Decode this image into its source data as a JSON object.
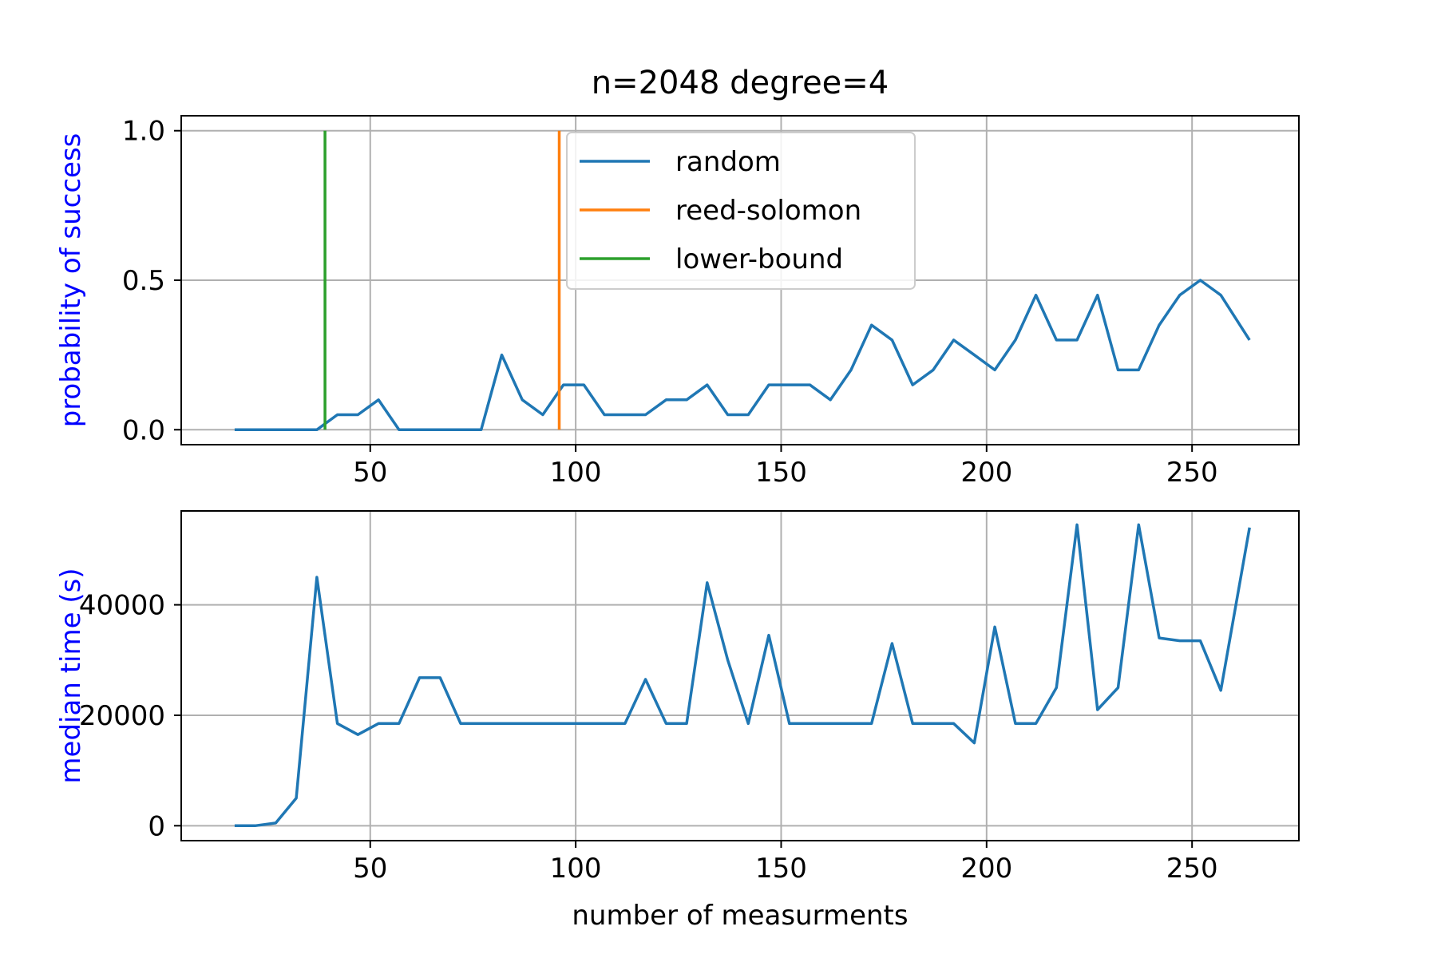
{
  "chart_data": [
    {
      "type": "line",
      "title": "n=2048 degree=4",
      "xlabel": "",
      "ylabel": "probability of success",
      "ylabel_color": "#0000ff",
      "xlim": [
        4,
        276
      ],
      "ylim": [
        -0.05,
        1.05
      ],
      "xticks": [
        50,
        100,
        150,
        200,
        250
      ],
      "yticks": [
        0.0,
        0.5,
        1.0
      ],
      "xtick_labels": [
        "50",
        "100",
        "150",
        "200",
        "250"
      ],
      "ytick_labels": [
        "0.0",
        "0.5",
        "1.0"
      ],
      "grid": true,
      "legend_position": "upper-center",
      "series": [
        {
          "name": "random",
          "color": "#1f77b4",
          "x": [
            17,
            22,
            27,
            32,
            37,
            42,
            47,
            52,
            57,
            62,
            67,
            72,
            77,
            82,
            87,
            92,
            97,
            102,
            107,
            112,
            117,
            122,
            127,
            132,
            137,
            142,
            147,
            152,
            157,
            162,
            167,
            172,
            177,
            182,
            187,
            192,
            197,
            202,
            207,
            212,
            217,
            222,
            227,
            232,
            237,
            242,
            247,
            252,
            257,
            264
          ],
          "y": [
            0,
            0,
            0,
            0,
            0,
            0.05,
            0.05,
            0.1,
            0,
            0,
            0,
            0,
            0,
            0.25,
            0.1,
            0.05,
            0.15,
            0.15,
            0.05,
            0.05,
            0.05,
            0.1,
            0.1,
            0.15,
            0.05,
            0.05,
            0.15,
            0.15,
            0.15,
            0.1,
            0.2,
            0.35,
            0.3,
            0.15,
            0.2,
            0.3,
            0.25,
            0.2,
            0.3,
            0.45,
            0.3,
            0.3,
            0.45,
            0.2,
            0.2,
            0.35,
            0.45,
            0.5,
            0.45,
            0.3
          ]
        },
        {
          "name": "reed-solomon",
          "color": "#ff7f0e",
          "x": [
            96,
            96
          ],
          "y": [
            0,
            1
          ]
        },
        {
          "name": "lower-bound",
          "color": "#2ca02c",
          "x": [
            39,
            39
          ],
          "y": [
            0,
            1
          ]
        }
      ]
    },
    {
      "type": "line",
      "title": "",
      "xlabel": "number of measurments",
      "ylabel": "median time (s)",
      "ylabel_color": "#0000ff",
      "xlim": [
        4,
        276
      ],
      "ylim": [
        -2700,
        57000
      ],
      "xticks": [
        50,
        100,
        150,
        200,
        250
      ],
      "yticks": [
        0,
        20000,
        40000
      ],
      "xtick_labels": [
        "50",
        "100",
        "150",
        "200",
        "250"
      ],
      "ytick_labels": [
        "0",
        "20000",
        "40000"
      ],
      "grid": true,
      "series": [
        {
          "name": "",
          "color": "#1f77b4",
          "x": [
            17,
            22,
            27,
            32,
            37,
            42,
            47,
            52,
            57,
            62,
            67,
            72,
            77,
            82,
            87,
            92,
            97,
            102,
            107,
            112,
            117,
            122,
            127,
            132,
            137,
            142,
            147,
            152,
            157,
            162,
            167,
            172,
            177,
            182,
            187,
            192,
            197,
            202,
            207,
            212,
            217,
            222,
            227,
            232,
            237,
            242,
            247,
            252,
            257,
            264
          ],
          "y": [
            0,
            0,
            500,
            5000,
            45000,
            18500,
            16500,
            18500,
            18500,
            26800,
            26800,
            18500,
            18500,
            18500,
            18500,
            18500,
            18500,
            18500,
            18500,
            18500,
            26500,
            18500,
            18500,
            44000,
            30000,
            18500,
            34500,
            18500,
            18500,
            18500,
            18500,
            18500,
            33000,
            18500,
            18500,
            18500,
            15000,
            36000,
            18500,
            18500,
            25000,
            54500,
            21000,
            25000,
            54500,
            34000,
            33500,
            33500,
            24500,
            54000
          ]
        }
      ]
    }
  ]
}
